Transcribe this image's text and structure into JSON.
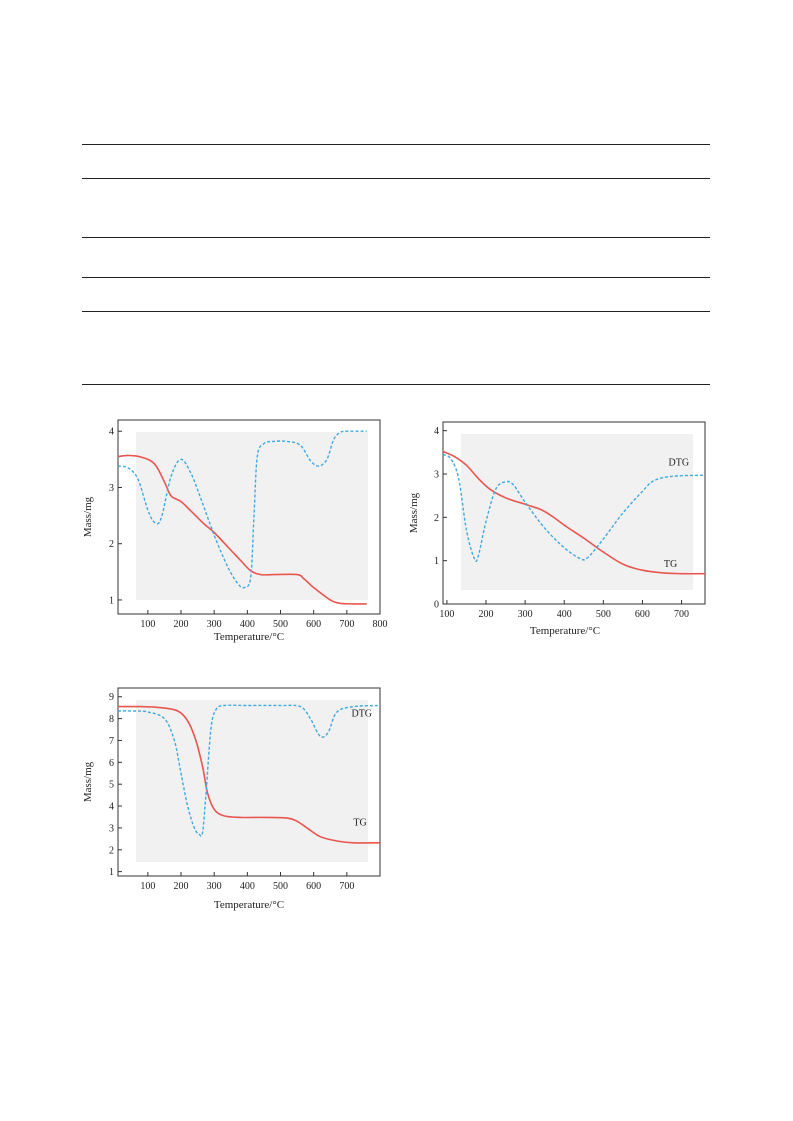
{
  "table_rules": 6,
  "colors": {
    "tg": "#e8564f",
    "dtg": "#3fa9e0",
    "axis": "#333333",
    "panel": "#f1f1f1"
  },
  "chart_data": [
    {
      "id": "chart1",
      "type": "line",
      "xlabel": "Temperature/°C",
      "ylabel": "Mass/mg",
      "xlim": [
        10,
        800
      ],
      "ylim": [
        0.75,
        4.2
      ],
      "xticks": [
        100,
        200,
        300,
        400,
        500,
        600,
        700,
        800
      ],
      "yticks": [
        1,
        2,
        3,
        4
      ],
      "series": [
        {
          "style": "solid",
          "color": "#e8564f",
          "x": [
            10,
            40,
            80,
            120,
            150,
            170,
            200,
            230,
            270,
            300,
            340,
            380,
            410,
            440,
            480,
            550,
            570,
            600,
            650,
            680,
            720,
            760
          ],
          "y": [
            3.55,
            3.57,
            3.54,
            3.42,
            3.1,
            2.85,
            2.75,
            2.58,
            2.35,
            2.2,
            1.95,
            1.7,
            1.52,
            1.45,
            1.45,
            1.45,
            1.38,
            1.22,
            1.0,
            0.94,
            0.93,
            0.93
          ]
        },
        {
          "style": "dashed",
          "color": "#3fa9e0",
          "x": [
            10,
            40,
            70,
            100,
            120,
            140,
            170,
            200,
            230,
            260,
            300,
            340,
            370,
            390,
            410,
            420,
            430,
            450,
            480,
            520,
            560,
            590,
            615,
            640,
            660,
            680,
            700,
            760
          ],
          "y": [
            3.38,
            3.35,
            3.15,
            2.6,
            2.38,
            2.45,
            3.2,
            3.5,
            3.25,
            2.8,
            2.15,
            1.6,
            1.3,
            1.22,
            1.4,
            2.5,
            3.55,
            3.78,
            3.82,
            3.82,
            3.75,
            3.48,
            3.38,
            3.5,
            3.85,
            3.98,
            4.0,
            4.0
          ]
        }
      ]
    },
    {
      "id": "chart2",
      "type": "line",
      "xlabel": "Temperature/°C",
      "ylabel": "Mass/mg",
      "xlim": [
        90,
        760
      ],
      "ylim": [
        0,
        4.2
      ],
      "xticks": [
        100,
        200,
        300,
        400,
        500,
        600,
        700
      ],
      "yticks": [
        0,
        1,
        2,
        3,
        4
      ],
      "annotations": [
        {
          "text": "DTG",
          "x": 693,
          "y": 3.2
        },
        {
          "text": "TG",
          "x": 672,
          "y": 0.85
        }
      ],
      "series": [
        {
          "name": "TG",
          "style": "solid",
          "color": "#e8564f",
          "x": [
            90,
            120,
            150,
            180,
            210,
            250,
            300,
            340,
            370,
            400,
            450,
            500,
            550,
            600,
            650,
            700,
            760
          ],
          "y": [
            3.52,
            3.4,
            3.2,
            2.9,
            2.65,
            2.45,
            2.3,
            2.18,
            2.02,
            1.82,
            1.52,
            1.2,
            0.92,
            0.78,
            0.72,
            0.7,
            0.7
          ]
        },
        {
          "name": "DTG",
          "style": "dashed",
          "color": "#3fa9e0",
          "x": [
            90,
            110,
            130,
            150,
            170,
            180,
            200,
            225,
            250,
            270,
            300,
            350,
            400,
            440,
            460,
            500,
            550,
            600,
            630,
            680,
            760
          ],
          "y": [
            3.45,
            3.35,
            2.9,
            1.7,
            1.05,
            1.1,
            1.9,
            2.65,
            2.82,
            2.75,
            2.35,
            1.75,
            1.3,
            1.05,
            1.07,
            1.5,
            2.1,
            2.6,
            2.85,
            2.95,
            2.97
          ]
        }
      ]
    },
    {
      "id": "chart3",
      "type": "line",
      "xlabel": "Temperature/°C",
      "ylabel": "Mass/mg",
      "xlim": [
        10,
        800
      ],
      "ylim": [
        0.8,
        9.4
      ],
      "xticks": [
        100,
        200,
        300,
        400,
        500,
        600,
        700
      ],
      "yticks": [
        1,
        2,
        3,
        4,
        5,
        6,
        7,
        8,
        9
      ],
      "annotations": [
        {
          "text": "DTG",
          "x": 745,
          "y": 8.1
        },
        {
          "text": "TG",
          "x": 740,
          "y": 3.1
        }
      ],
      "series": [
        {
          "name": "TG",
          "style": "solid",
          "color": "#e8564f",
          "x": [
            10,
            80,
            140,
            190,
            220,
            245,
            265,
            280,
            300,
            330,
            380,
            450,
            520,
            550,
            580,
            620,
            670,
            720,
            800
          ],
          "y": [
            8.55,
            8.55,
            8.5,
            8.35,
            7.9,
            7.0,
            5.8,
            4.6,
            3.85,
            3.55,
            3.48,
            3.48,
            3.45,
            3.3,
            3.0,
            2.6,
            2.4,
            2.32,
            2.32
          ]
        },
        {
          "name": "DTG",
          "style": "dashed",
          "color": "#3fa9e0",
          "x": [
            10,
            60,
            100,
            150,
            180,
            200,
            220,
            240,
            255,
            265,
            275,
            290,
            305,
            330,
            400,
            500,
            560,
            590,
            610,
            625,
            645,
            670,
            720,
            800
          ],
          "y": [
            8.35,
            8.35,
            8.3,
            8.0,
            7.0,
            5.5,
            4.0,
            3.0,
            2.7,
            2.8,
            4.5,
            7.5,
            8.4,
            8.6,
            8.6,
            8.6,
            8.55,
            8.0,
            7.4,
            7.15,
            7.4,
            8.3,
            8.55,
            8.6
          ]
        }
      ]
    }
  ]
}
